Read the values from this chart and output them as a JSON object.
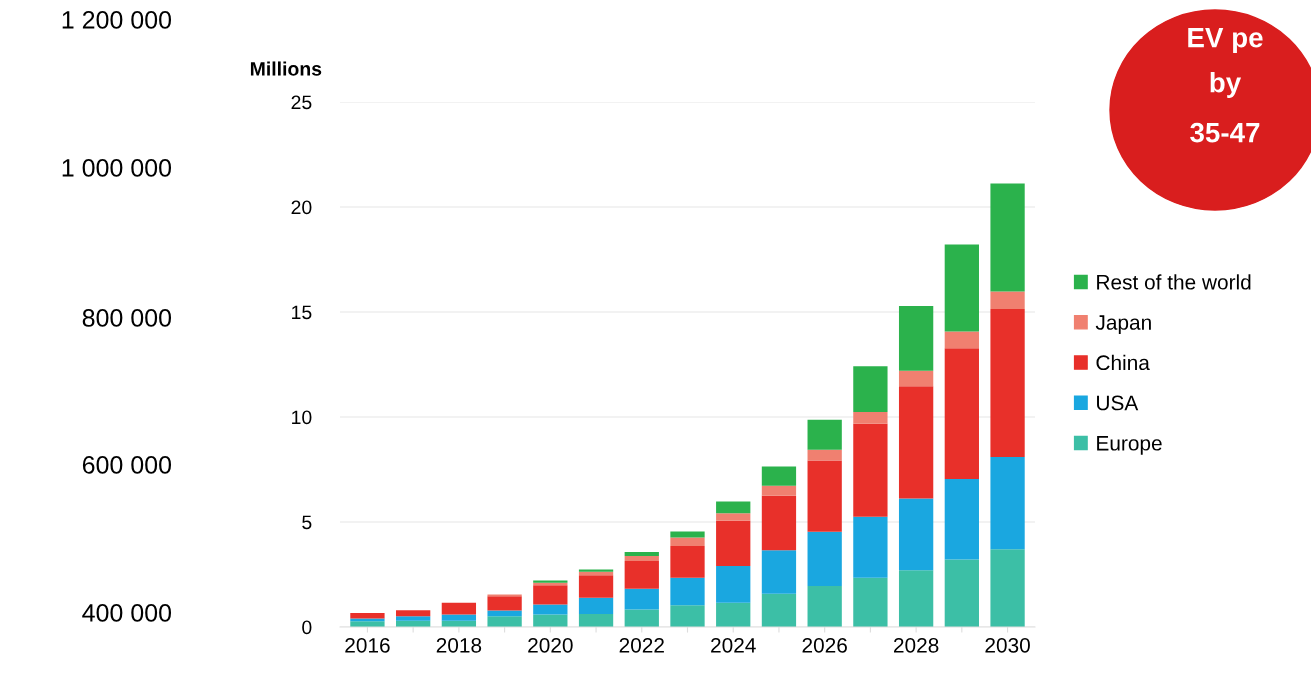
{
  "chart_data": {
    "type": "bar",
    "stacked": true,
    "ylabel": "Millions",
    "categories": [
      "2016",
      null,
      "2018",
      null,
      "2020",
      null,
      "2022",
      null,
      "2024",
      null,
      "2026",
      null,
      "2028",
      null,
      "2030"
    ],
    "series": [
      {
        "name": "Europe",
        "color": "#3cbfa6",
        "values": [
          0.27,
          0.3,
          0.3,
          0.51,
          0.59,
          0.62,
          0.83,
          1.04,
          1.15,
          1.58,
          1.95,
          2.34,
          2.7,
          3.22,
          3.7
        ]
      },
      {
        "name": "USA",
        "color": "#1aa7e0",
        "values": [
          0.13,
          0.21,
          0.29,
          0.27,
          0.48,
          0.77,
          0.99,
          1.3,
          1.75,
          2.07,
          2.58,
          2.91,
          3.42,
          3.83,
          4.39
        ]
      },
      {
        "name": "China",
        "color": "#e8302a",
        "values": [
          0.27,
          0.29,
          0.56,
          0.69,
          0.92,
          1.08,
          1.32,
          1.52,
          2.16,
          2.6,
          3.4,
          4.43,
          5.35,
          6.22,
          7.05
        ]
      },
      {
        "name": "Japan",
        "color": "#f08070",
        "values": [
          0,
          0,
          0,
          0.08,
          0.12,
          0.16,
          0.24,
          0.4,
          0.36,
          0.48,
          0.51,
          0.56,
          0.73,
          0.8,
          0.84
        ]
      },
      {
        "name": "Rest of the world",
        "color": "#2bb24c",
        "values": [
          0,
          0,
          0,
          0,
          0.11,
          0.11,
          0.19,
          0.29,
          0.56,
          0.91,
          1.43,
          2.18,
          3.09,
          4.14,
          5.14
        ]
      }
    ],
    "ylim": [
      0,
      25
    ],
    "yticks": [
      0,
      5,
      10,
      15,
      20,
      25
    ],
    "grid": "y",
    "legend": "right",
    "annotations": [
      "1 200 000",
      "1 000 000",
      "800 000",
      "600 000",
      "400 000",
      "EV pe",
      "by",
      "35-47"
    ]
  }
}
